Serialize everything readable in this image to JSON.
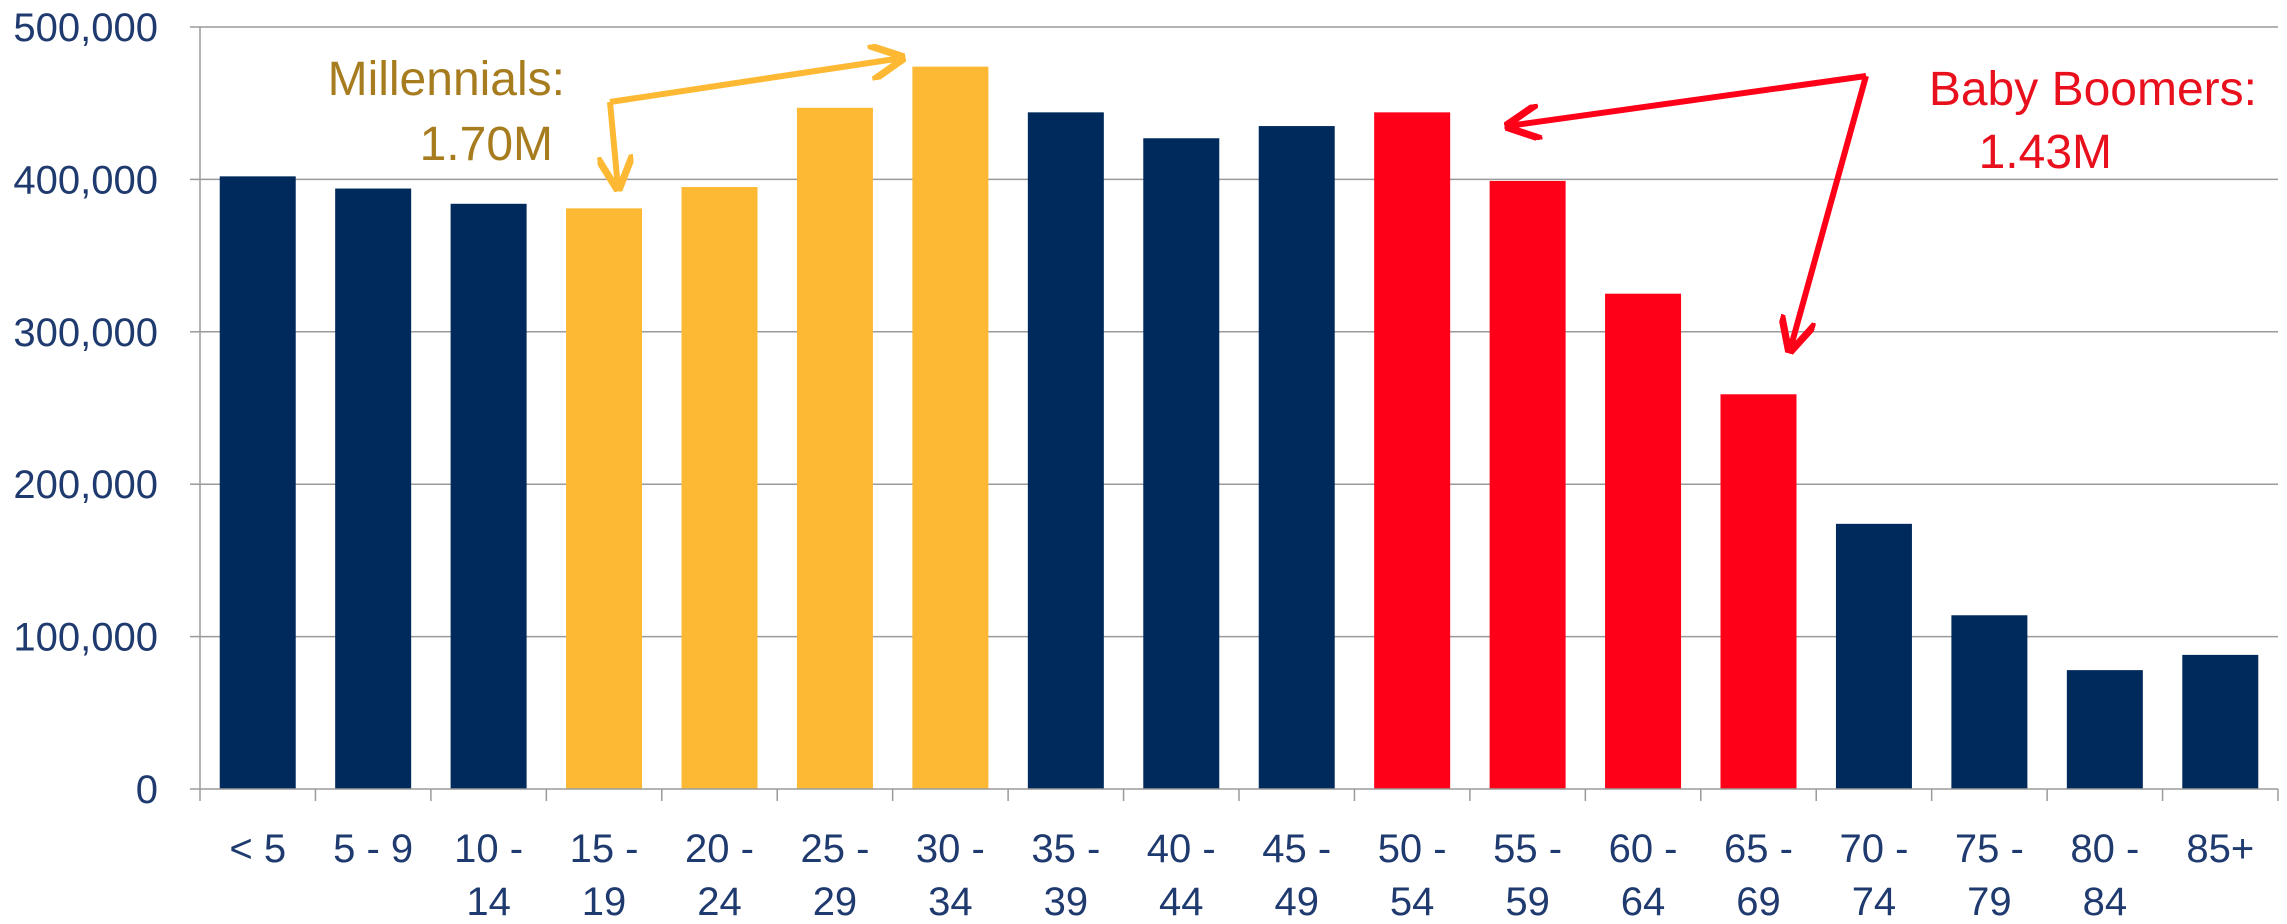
{
  "chart_data": {
    "type": "bar",
    "categories": [
      [
        "< 5"
      ],
      [
        "5 - 9"
      ],
      [
        "10 -",
        "14"
      ],
      [
        "15 -",
        "19"
      ],
      [
        "20 -",
        "24"
      ],
      [
        "25 -",
        "29"
      ],
      [
        "30 -",
        "34"
      ],
      [
        "35 -",
        "39"
      ],
      [
        "40 -",
        "44"
      ],
      [
        "45 -",
        "49"
      ],
      [
        "50 -",
        "54"
      ],
      [
        "55 -",
        "59"
      ],
      [
        "60 -",
        "64"
      ],
      [
        "65 -",
        "69"
      ],
      [
        "70 -",
        "74"
      ],
      [
        "75 -",
        "79"
      ],
      [
        "80 -",
        "84"
      ],
      [
        "85+"
      ]
    ],
    "values": [
      402000,
      394000,
      384000,
      381000,
      395000,
      447000,
      474000,
      444000,
      427000,
      435000,
      444000,
      399000,
      325000,
      259000,
      174000,
      114000,
      78000,
      88000
    ],
    "groups": [
      "default",
      "default",
      "default",
      "millennial",
      "millennial",
      "millennial",
      "millennial",
      "default",
      "default",
      "default",
      "boomer",
      "boomer",
      "boomer",
      "boomer",
      "default",
      "default",
      "default",
      "default"
    ],
    "colors": {
      "default": "#002a5c",
      "millennial": "#fdb933",
      "boomer": "#ff0019"
    },
    "ylim": [
      0,
      500000
    ],
    "yticks": [
      "0",
      "100,000",
      "200,000",
      "300,000",
      "400,000",
      "500,000"
    ],
    "ytick_values": [
      0,
      100000,
      200000,
      300000,
      400000,
      500000
    ],
    "grid": true,
    "annotations": {
      "millennials": {
        "line1": "Millennials:",
        "line2": "1.70M",
        "color": "#a67c1e",
        "arrow_color": "#fdb933"
      },
      "boomers": {
        "line1": "Baby Boomers:",
        "line2": "1.43M",
        "color": "#e8101c",
        "arrow_color": "#ff0019"
      }
    }
  }
}
